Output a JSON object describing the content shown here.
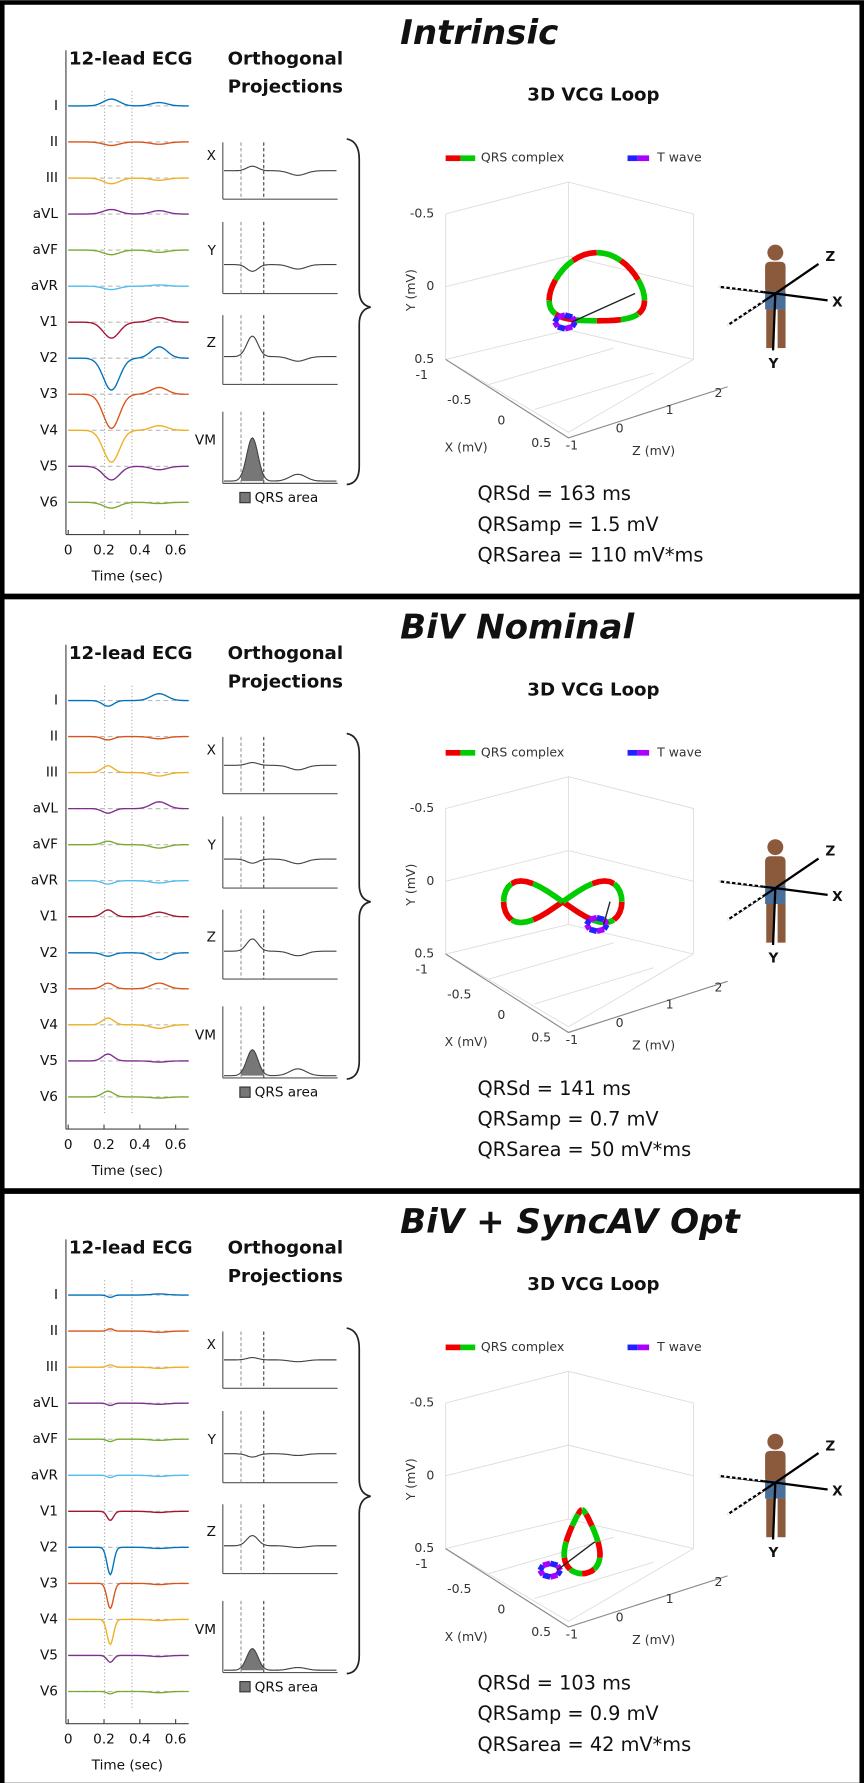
{
  "panels": [
    {
      "title": "Intrinsic",
      "ecg_title": "12-lead ECG",
      "leads": [
        "I",
        "II",
        "III",
        "aVL",
        "aVF",
        "aVR",
        "V1",
        "V2",
        "V3",
        "V4",
        "V5",
        "V6"
      ],
      "time_ticks": [
        "0",
        "0.2",
        "0.4",
        "0.6"
      ],
      "time_label": "Time (sec)",
      "proj_title": [
        "Orthogonal",
        "Projections"
      ],
      "proj_labels": [
        "X",
        "Y",
        "Z",
        "VM"
      ],
      "qrs_area_label": "QRS area",
      "vcg_title": "3D VCG Loop",
      "legend": [
        "QRS complex",
        "T wave"
      ],
      "y_ticks": [
        "-0.5",
        "0",
        "0.5"
      ],
      "x_ticks": [
        "-1",
        "-0.5",
        "0",
        "0.5"
      ],
      "z_ticks": [
        "-1",
        "0",
        "1",
        "2"
      ],
      "y_label": "Y (mV)",
      "x_label": "X (mV)",
      "z_label": "Z (mV)",
      "body_axes": [
        "Z",
        "X",
        "Y"
      ],
      "stats": [
        "QRSd = 163 ms",
        "QRSamp = 1.5 mV",
        "QRSarea = 110 mV*ms"
      ]
    },
    {
      "title": "BiV Nominal",
      "ecg_title": "12-lead ECG",
      "leads": [
        "I",
        "II",
        "III",
        "aVL",
        "aVF",
        "aVR",
        "V1",
        "V2",
        "V3",
        "V4",
        "V5",
        "V6"
      ],
      "time_ticks": [
        "0",
        "0.2",
        "0.4",
        "0.6"
      ],
      "time_label": "Time (sec)",
      "proj_title": [
        "Orthogonal",
        "Projections"
      ],
      "proj_labels": [
        "X",
        "Y",
        "Z",
        "VM"
      ],
      "qrs_area_label": "QRS area",
      "vcg_title": "3D VCG Loop",
      "legend": [
        "QRS complex",
        "T wave"
      ],
      "y_ticks": [
        "-0.5",
        "0",
        "0.5"
      ],
      "x_ticks": [
        "-1",
        "-0.5",
        "0",
        "0.5"
      ],
      "z_ticks": [
        "-1",
        "0",
        "1",
        "2"
      ],
      "y_label": "Y (mV)",
      "x_label": "X (mV)",
      "z_label": "Z (mV)",
      "body_axes": [
        "Z",
        "X",
        "Y"
      ],
      "stats": [
        "QRSd = 141 ms",
        "QRSamp = 0.7 mV",
        "QRSarea = 50 mV*ms"
      ]
    },
    {
      "title": "BiV + SyncAV Opt",
      "ecg_title": "12-lead ECG",
      "leads": [
        "I",
        "II",
        "III",
        "aVL",
        "aVF",
        "aVR",
        "V1",
        "V2",
        "V3",
        "V4",
        "V5",
        "V6"
      ],
      "time_ticks": [
        "0",
        "0.2",
        "0.4",
        "0.6"
      ],
      "time_label": "Time (sec)",
      "proj_title": [
        "Orthogonal",
        "Projections"
      ],
      "proj_labels": [
        "X",
        "Y",
        "Z",
        "VM"
      ],
      "qrs_area_label": "QRS area",
      "vcg_title": "3D VCG Loop",
      "legend": [
        "QRS complex",
        "T wave"
      ],
      "y_ticks": [
        "-0.5",
        "0",
        "0.5"
      ],
      "x_ticks": [
        "-1",
        "-0.5",
        "0",
        "0.5"
      ],
      "z_ticks": [
        "-1",
        "0",
        "1",
        "2"
      ],
      "y_label": "Y (mV)",
      "x_label": "X (mV)",
      "z_label": "Z (mV)",
      "body_axes": [
        "Z",
        "X",
        "Y"
      ],
      "stats": [
        "QRSd = 103 ms",
        "QRSamp = 0.9 mV",
        "QRSarea = 42 mV*ms"
      ]
    }
  ]
}
